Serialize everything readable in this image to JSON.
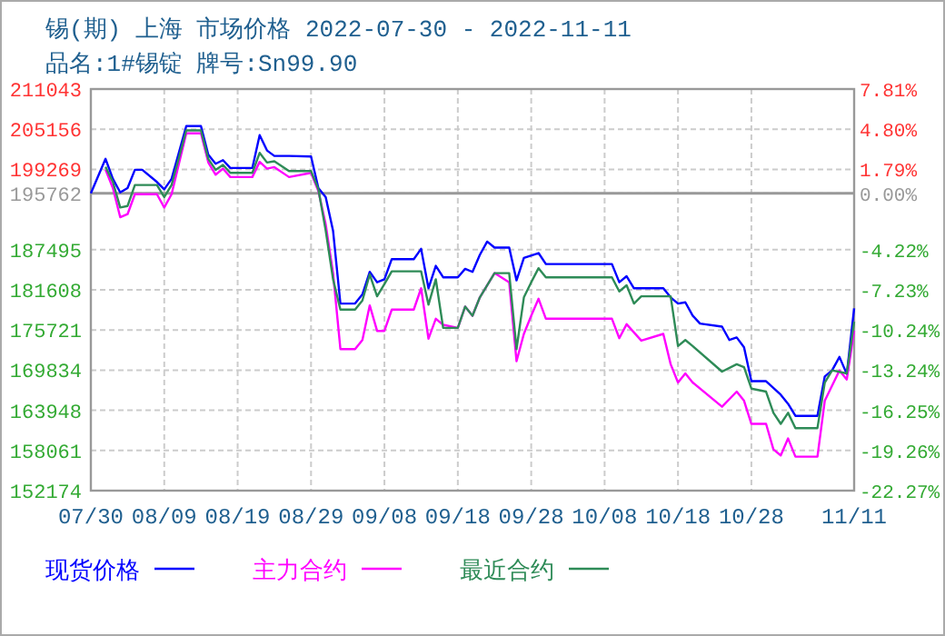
{
  "chart_data": {
    "type": "line",
    "title": "锡(期) 上海 市场价格 2022-07-30 - 2022-11-11",
    "subtitle": "品名:1#锡锭 牌号:Sn99.90",
    "xlim": [
      "2022-07-30",
      "2022-11-11"
    ],
    "xticks": [
      {
        "value": "2022-07-30",
        "label": "07/30"
      },
      {
        "value": "2022-08-09",
        "label": "08/09"
      },
      {
        "value": "2022-08-19",
        "label": "08/19"
      },
      {
        "value": "2022-08-29",
        "label": "08/29"
      },
      {
        "value": "2022-09-08",
        "label": "09/08"
      },
      {
        "value": "2022-09-18",
        "label": "09/18"
      },
      {
        "value": "2022-09-28",
        "label": "09/28"
      },
      {
        "value": "2022-10-08",
        "label": "10/08"
      },
      {
        "value": "2022-10-18",
        "label": "10/18"
      },
      {
        "value": "2022-10-28",
        "label": "10/28"
      },
      {
        "value": "2022-11-11",
        "label": "11/11"
      }
    ],
    "ylim": [
      152174,
      211043
    ],
    "yticks": [
      211043,
      205156,
      199269,
      195762,
      187495,
      181608,
      175721,
      169834,
      163948,
      158061,
      152174
    ],
    "y2lim": [
      -22.27,
      7.81
    ],
    "y2ticks": [
      {
        "value": 7.81,
        "label": "7.81%"
      },
      {
        "value": 4.8,
        "label": "4.80%"
      },
      {
        "value": 1.79,
        "label": "1.79%"
      },
      {
        "value": 0,
        "label": "0.00%"
      },
      {
        "value": -4.22,
        "label": "-4.22%"
      },
      {
        "value": -7.23,
        "label": "-7.23%"
      },
      {
        "value": -10.24,
        "label": "-10.24%"
      },
      {
        "value": -13.24,
        "label": "-13.24%"
      },
      {
        "value": -16.25,
        "label": "-16.25%"
      },
      {
        "value": -19.26,
        "label": "-19.26%"
      },
      {
        "value": -22.27,
        "label": "-22.27%"
      }
    ],
    "ref_lines": [
      {
        "axis": "y",
        "value": 195762,
        "color": "#999999"
      }
    ],
    "grid": true,
    "legend": "bottom",
    "series": [
      {
        "name": "现货价格",
        "color": "#0000ff",
        "x": [
          "2022-07-30",
          "2022-08-01",
          "2022-08-02",
          "2022-08-03",
          "2022-08-04",
          "2022-08-05",
          "2022-08-06",
          "2022-08-08",
          "2022-08-09",
          "2022-08-10",
          "2022-08-12",
          "2022-08-14",
          "2022-08-15",
          "2022-08-16",
          "2022-08-17",
          "2022-08-18",
          "2022-08-21",
          "2022-08-22",
          "2022-08-23",
          "2022-08-24",
          "2022-08-26",
          "2022-08-29",
          "2022-08-30",
          "2022-08-31",
          "2022-09-01",
          "2022-09-02",
          "2022-09-04",
          "2022-09-05",
          "2022-09-06",
          "2022-09-07",
          "2022-09-08",
          "2022-09-09",
          "2022-09-12",
          "2022-09-13",
          "2022-09-14",
          "2022-09-15",
          "2022-09-16",
          "2022-09-18",
          "2022-09-19",
          "2022-09-20",
          "2022-09-21",
          "2022-09-22",
          "2022-09-23",
          "2022-09-25",
          "2022-09-26",
          "2022-09-27",
          "2022-09-29",
          "2022-09-30",
          "2022-10-09",
          "2022-10-10",
          "2022-10-11",
          "2022-10-12",
          "2022-10-16",
          "2022-10-17",
          "2022-10-18",
          "2022-10-19",
          "2022-10-20",
          "2022-10-21",
          "2022-10-24",
          "2022-10-25",
          "2022-10-26",
          "2022-10-27",
          "2022-10-28",
          "2022-10-30",
          "2022-11-01",
          "2022-11-02",
          "2022-11-03",
          "2022-11-06",
          "2022-11-07",
          "2022-11-08",
          "2022-11-09",
          "2022-11-10",
          "2022-11-11"
        ],
        "values": [
          195762,
          200810,
          197870,
          195890,
          196530,
          199200,
          199200,
          197420,
          196350,
          197870,
          205620,
          205620,
          201420,
          200090,
          200620,
          199470,
          199470,
          204280,
          202040,
          201240,
          201240,
          201150,
          196530,
          195200,
          190280,
          179600,
          179600,
          180930,
          184240,
          182720,
          183160,
          186110,
          186110,
          187620,
          181840,
          185130,
          183450,
          183450,
          184690,
          184240,
          186730,
          188680,
          187800,
          187800,
          182990,
          186280,
          187000,
          185390,
          185390,
          182720,
          183600,
          181840,
          181840,
          180500,
          179600,
          179780,
          177830,
          176660,
          176220,
          174250,
          174630,
          173180,
          168220,
          168220,
          166240,
          164910,
          163130,
          163130,
          168910,
          169800,
          171770,
          169270,
          178900
        ]
      },
      {
        "name": "主力合约",
        "color": "#ff00ff",
        "x": [
          "2022-08-01",
          "2022-08-02",
          "2022-08-03",
          "2022-08-04",
          "2022-08-05",
          "2022-08-08",
          "2022-08-09",
          "2022-08-10",
          "2022-08-12",
          "2022-08-14",
          "2022-08-15",
          "2022-08-16",
          "2022-08-17",
          "2022-08-18",
          "2022-08-21",
          "2022-08-22",
          "2022-08-23",
          "2022-08-24",
          "2022-08-26",
          "2022-08-29",
          "2022-08-30",
          "2022-08-31",
          "2022-09-01",
          "2022-09-02",
          "2022-09-04",
          "2022-09-05",
          "2022-09-06",
          "2022-09-07",
          "2022-09-08",
          "2022-09-09",
          "2022-09-12",
          "2022-09-13",
          "2022-09-14",
          "2022-09-15",
          "2022-09-16",
          "2022-09-18",
          "2022-09-19",
          "2022-09-20",
          "2022-09-21",
          "2022-09-23",
          "2022-09-25",
          "2022-09-26",
          "2022-09-27",
          "2022-09-28",
          "2022-09-29",
          "2022-09-30",
          "2022-10-09",
          "2022-10-10",
          "2022-10-11",
          "2022-10-13",
          "2022-10-16",
          "2022-10-17",
          "2022-10-18",
          "2022-10-19",
          "2022-10-20",
          "2022-10-24",
          "2022-10-26",
          "2022-10-27",
          "2022-10-28",
          "2022-10-30",
          "2022-10-31",
          "2022-11-01",
          "2022-11-02",
          "2022-11-03",
          "2022-11-06",
          "2022-11-07",
          "2022-11-09",
          "2022-11-10",
          "2022-11-11"
        ],
        "values": [
          199200,
          196530,
          192260,
          192700,
          195630,
          195630,
          193680,
          195630,
          204550,
          204550,
          200280,
          198490,
          199380,
          198140,
          198140,
          200370,
          199380,
          199600,
          198140,
          198760,
          196080,
          191190,
          184060,
          172920,
          172920,
          174250,
          179330,
          175590,
          175590,
          178710,
          178710,
          181840,
          174430,
          177370,
          176480,
          176030,
          179160,
          177820,
          180500,
          184060,
          182720,
          171150,
          175150,
          177820,
          180300,
          177370,
          177370,
          174520,
          176570,
          174160,
          175150,
          170700,
          168020,
          169350,
          168020,
          164470,
          166690,
          165350,
          161960,
          161960,
          158220,
          157340,
          159820,
          157150,
          157150,
          165350,
          169800,
          168470,
          175590
        ]
      },
      {
        "name": "最近合约",
        "color": "#2e8b57",
        "x": [
          "2022-08-01",
          "2022-08-02",
          "2022-08-03",
          "2022-08-04",
          "2022-08-05",
          "2022-08-08",
          "2022-08-09",
          "2022-08-10",
          "2022-08-12",
          "2022-08-14",
          "2022-08-15",
          "2022-08-16",
          "2022-08-17",
          "2022-08-18",
          "2022-08-21",
          "2022-08-22",
          "2022-08-23",
          "2022-08-24",
          "2022-08-26",
          "2022-08-29",
          "2022-08-30",
          "2022-08-31",
          "2022-09-01",
          "2022-09-02",
          "2022-09-04",
          "2022-09-05",
          "2022-09-06",
          "2022-09-07",
          "2022-09-08",
          "2022-09-09",
          "2022-09-13",
          "2022-09-14",
          "2022-09-15",
          "2022-09-16",
          "2022-09-18",
          "2022-09-19",
          "2022-09-20",
          "2022-09-21",
          "2022-09-23",
          "2022-09-25",
          "2022-09-26",
          "2022-09-27",
          "2022-09-28",
          "2022-09-29",
          "2022-09-30",
          "2022-10-09",
          "2022-10-10",
          "2022-10-11",
          "2022-10-12",
          "2022-10-13",
          "2022-10-17",
          "2022-10-18",
          "2022-10-19",
          "2022-10-20",
          "2022-10-24",
          "2022-10-26",
          "2022-10-27",
          "2022-10-28",
          "2022-10-30",
          "2022-10-31",
          "2022-11-01",
          "2022-11-02",
          "2022-11-03",
          "2022-11-06",
          "2022-11-07",
          "2022-11-08",
          "2022-11-10",
          "2022-11-11"
        ],
        "values": [
          199640,
          197420,
          193680,
          193900,
          196970,
          196970,
          195200,
          196970,
          204980,
          204980,
          200810,
          199200,
          199920,
          198760,
          198760,
          201690,
          200270,
          200450,
          199020,
          199020,
          196350,
          190280,
          183160,
          178710,
          178710,
          180040,
          183870,
          180660,
          182450,
          184320,
          184320,
          179430,
          183160,
          176030,
          176030,
          179160,
          177820,
          180500,
          184060,
          184060,
          172920,
          180500,
          182720,
          184780,
          183450,
          183450,
          181380,
          182270,
          179600,
          180660,
          180660,
          173370,
          174250,
          173370,
          169620,
          170700,
          170260,
          167130,
          166690,
          163580,
          161960,
          163580,
          161340,
          161340,
          168020,
          169800,
          169360,
          176920
        ]
      }
    ]
  }
}
